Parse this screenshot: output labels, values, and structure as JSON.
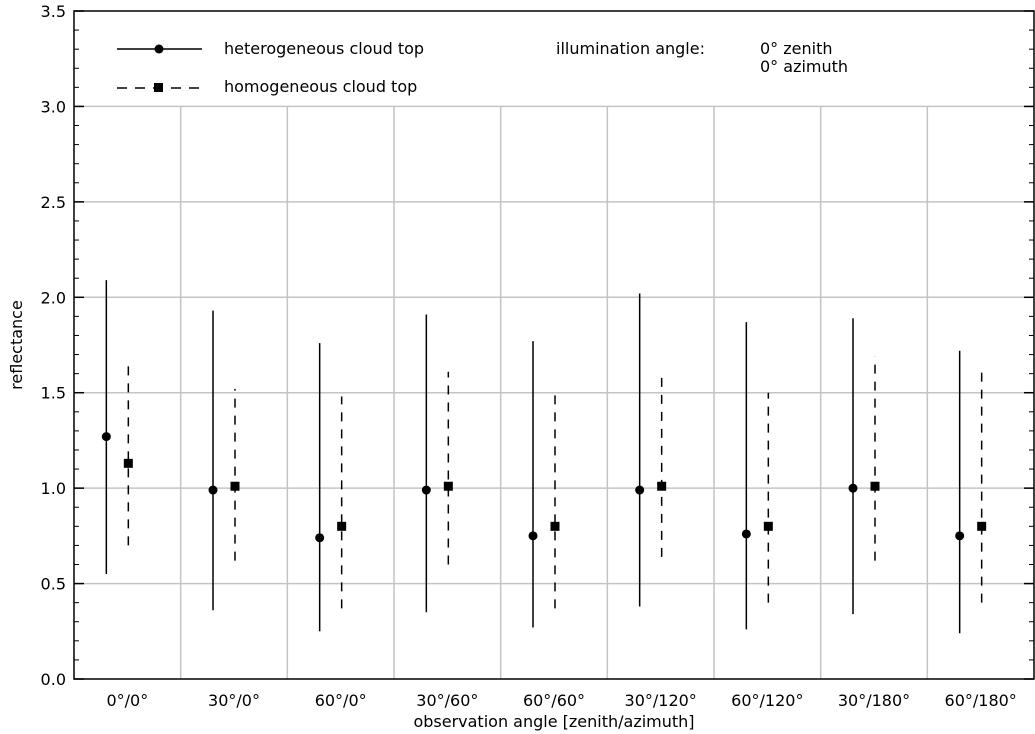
{
  "chart_data": {
    "type": "scatter",
    "categories": [
      "0°/0°",
      "30°/0°",
      "60°/0°",
      "30°/60°",
      "60°/60°",
      "30°/120°",
      "60°/120°",
      "30°/180°",
      "60°/180°"
    ],
    "xlabel": "observation angle [zenith/azimuth]",
    "ylabel": "reflectance",
    "ylim": [
      0.0,
      3.5
    ],
    "yticks": [
      "0.0",
      "0.5",
      "1.0",
      "1.5",
      "2.0",
      "2.5",
      "3.0",
      "3.5"
    ],
    "grid": true,
    "legend_position": "top-left",
    "series": [
      {
        "name": "heterogeneous cloud top",
        "marker": "circle",
        "line": "solid",
        "values": [
          1.27,
          0.99,
          0.74,
          0.99,
          0.75,
          0.99,
          0.76,
          1.0,
          0.75
        ],
        "lower": [
          0.55,
          0.36,
          0.25,
          0.35,
          0.27,
          0.38,
          0.26,
          0.34,
          0.24
        ],
        "upper": [
          2.09,
          1.93,
          1.76,
          1.91,
          1.77,
          2.02,
          1.87,
          1.89,
          1.72
        ]
      },
      {
        "name": "homogeneous cloud top",
        "marker": "square",
        "line": "dashed",
        "values": [
          1.13,
          1.01,
          0.8,
          1.01,
          0.8,
          1.01,
          0.8,
          1.01,
          0.8
        ],
        "lower": [
          0.7,
          0.62,
          0.37,
          0.6,
          0.37,
          0.64,
          0.4,
          0.62,
          0.4
        ],
        "upper": [
          1.66,
          1.52,
          1.48,
          1.61,
          1.49,
          1.59,
          1.5,
          1.69,
          1.61
        ]
      }
    ],
    "annotation": {
      "label": "illumination angle:",
      "zenith": "0° zenith",
      "azimuth": "0° azimuth"
    }
  }
}
